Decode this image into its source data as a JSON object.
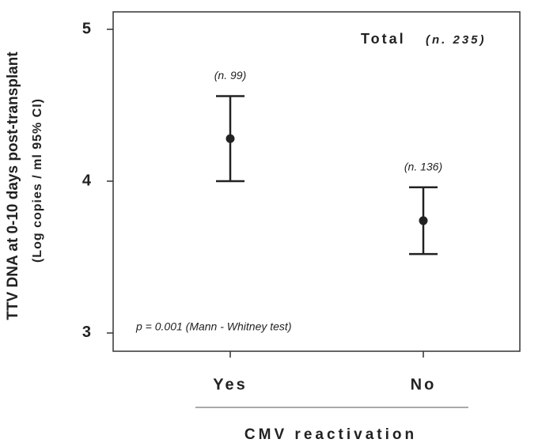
{
  "chart_data": {
    "type": "errorbar",
    "title": "Total",
    "subtitle": "(n. 235)",
    "y_label": "TTV DNA at 0-10 days post-transplant",
    "y_label_sub": "(Log copies / ml 95% CI)",
    "x_label": "CMV reactivation",
    "note": "p = 0.001 (Mann - Whitney test)",
    "categories": [
      "Yes",
      "No"
    ],
    "series": [
      {
        "color": "#222222",
        "values": [
          4.28,
          3.74
        ],
        "lower": [
          4.0,
          3.52
        ],
        "upper": [
          4.56,
          3.96
        ],
        "value_labels": [
          "(n. 99)",
          "(n. 136)"
        ]
      }
    ],
    "ylim": [
      2.88,
      5.115
    ],
    "yticks": [
      3,
      4,
      5
    ]
  }
}
